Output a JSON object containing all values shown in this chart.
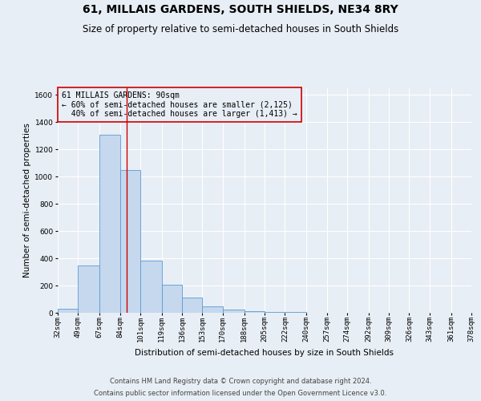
{
  "title": "61, MILLAIS GARDENS, SOUTH SHIELDS, NE34 8RY",
  "subtitle": "Size of property relative to semi-detached houses in South Shields",
  "xlabel": "Distribution of semi-detached houses by size in South Shields",
  "ylabel": "Number of semi-detached properties",
  "footer_line1": "Contains HM Land Registry data © Crown copyright and database right 2024.",
  "footer_line2": "Contains public sector information licensed under the Open Government Licence v3.0.",
  "annotation_title": "61 MILLAIS GARDENS: 90sqm",
  "annotation_line1": "← 60% of semi-detached houses are smaller (2,125)",
  "annotation_line2": "  40% of semi-detached houses are larger (1,413) →",
  "property_size": 90,
  "bin_edges": [
    32,
    49,
    67,
    84,
    101,
    119,
    136,
    153,
    170,
    188,
    205,
    222,
    240,
    257,
    274,
    292,
    309,
    326,
    343,
    361,
    378
  ],
  "bin_counts": [
    30,
    345,
    1310,
    1050,
    385,
    205,
    110,
    45,
    25,
    10,
    5,
    3,
    2,
    2,
    1,
    1,
    1,
    1,
    0,
    0
  ],
  "bar_color": "#c5d8ed",
  "bar_edge_color": "#5b9bd5",
  "vline_color": "#cc0000",
  "vline_x": 90,
  "ylim": [
    0,
    1650
  ],
  "yticks": [
    0,
    200,
    400,
    600,
    800,
    1000,
    1200,
    1400,
    1600
  ],
  "annotation_box_color": "#cc0000",
  "background_color": "#e8eef5",
  "grid_color": "#ffffff",
  "title_fontsize": 10,
  "subtitle_fontsize": 8.5,
  "axis_label_fontsize": 7.5,
  "tick_fontsize": 6.5,
  "annotation_fontsize": 7,
  "footer_fontsize": 6,
  "ylabel_fontsize": 7.5
}
